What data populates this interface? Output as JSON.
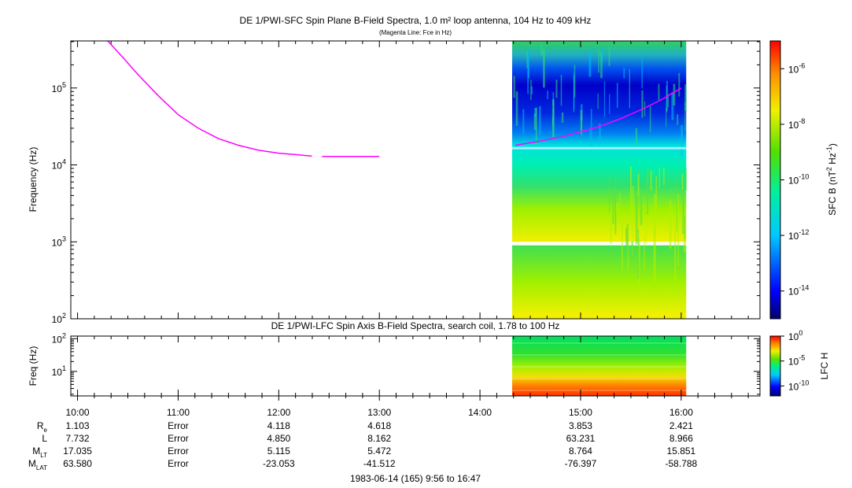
{
  "chart_data": [
    {
      "type": "heatmap",
      "title": "DE 1/PWI-SFC  Spin Plane B-Field Spectra, 1.0 m² loop antenna, 104 Hz to 409 kHz",
      "subtitle": "(Magenta Line: Fce in Hz)",
      "ylabel": "Frequency (Hz)",
      "yscale": "log",
      "ylim": [
        100,
        409000
      ],
      "yticks": [
        {
          "value": 100,
          "base": "10",
          "exp": "2"
        },
        {
          "value": 1000,
          "base": "10",
          "exp": "3"
        },
        {
          "value": 10000,
          "base": "10",
          "exp": "4"
        },
        {
          "value": 100000,
          "base": "10",
          "exp": "5"
        }
      ],
      "colorbar": {
        "label_main": "SFC B (nT",
        "label_sup1": "2",
        "label_mid": " Hz",
        "label_sup2": "-1",
        "label_end": ")",
        "scale": "log",
        "range": [
          -15,
          -5
        ],
        "ticks": [
          {
            "value": -6,
            "base": "10",
            "exp": "-6"
          },
          {
            "value": -8,
            "base": "10",
            "exp": "-8"
          },
          {
            "value": -10,
            "base": "10",
            "exp": "-10"
          },
          {
            "value": -12,
            "base": "10",
            "exp": "-12"
          },
          {
            "value": -14,
            "base": "10",
            "exp": "-14"
          }
        ]
      },
      "data_interval_hours": [
        14.32,
        16.05
      ],
      "fce_line": {
        "segments": [
          {
            "x": [
              10.3,
              10.45,
              10.6,
              10.8,
              11.0,
              11.2,
              11.4,
              11.6,
              11.8,
              12.0,
              12.2,
              12.33
            ],
            "y": [
              409000,
              250000,
              150000,
              80000,
              45000,
              30000,
              22000,
              18000,
              15500,
              14200,
              13500,
              13000
            ]
          },
          {
            "x": [
              12.43,
              13.0
            ],
            "y": [
              12900,
              12900
            ]
          },
          {
            "x": [
              14.35,
              14.6,
              14.8,
              15.0,
              15.2,
              15.4,
              15.6,
              15.8,
              16.0
            ],
            "y": [
              18000,
              20500,
              23000,
              27000,
              32000,
              40000,
              52000,
              70000,
              100000
            ]
          }
        ],
        "color": "#ff00ff"
      }
    },
    {
      "type": "heatmap",
      "title": "DE 1/PWI-LFC  Spin Axis B-Field Spectra, search coil, 1.78 to 100 Hz",
      "ylabel": "Freq (Hz)",
      "yscale": "log",
      "ylim": [
        1.78,
        120
      ],
      "yticks": [
        {
          "value": 10,
          "base": "10",
          "exp": "1"
        },
        {
          "value": 100,
          "base": "10",
          "exp": "2"
        }
      ],
      "colorbar": {
        "label": "LFC H",
        "scale": "log",
        "range": [
          -12,
          0
        ],
        "ticks": [
          {
            "value": 0,
            "base": "10",
            "exp": "0"
          },
          {
            "value": -5,
            "base": "10",
            "exp": "-5"
          },
          {
            "value": -10,
            "base": "10",
            "exp": "-10"
          }
        ]
      },
      "data_interval_hours": [
        14.32,
        16.05
      ]
    }
  ],
  "x_axis": {
    "xlim": [
      9.933,
      16.783
    ],
    "major_ticks": [
      10,
      11,
      12,
      13,
      14,
      15,
      16
    ],
    "labels": [
      "10:00",
      "11:00",
      "12:00",
      "13:00",
      "14:00",
      "15:00",
      "16:00"
    ]
  },
  "ephemeris": {
    "rows": [
      {
        "label": "R",
        "sub": "e",
        "values": [
          "1.103",
          "Error",
          "4.118",
          "4.618",
          "",
          "3.853",
          "2.421"
        ]
      },
      {
        "label": "L",
        "sub": "",
        "values": [
          "7.732",
          "Error",
          "4.850",
          "8.162",
          "",
          "63.231",
          "8.966"
        ]
      },
      {
        "label": "M",
        "sub": "LT",
        "values": [
          "17.035",
          "Error",
          "5.115",
          "5.472",
          "",
          "8.764",
          "15.851"
        ]
      },
      {
        "label": "M",
        "sub": "LAT",
        "values": [
          "63.580",
          "Error",
          "-23.053",
          "-41.512",
          "",
          "-76.397",
          "-58.788"
        ]
      }
    ]
  },
  "footer": "1983-06-14 (165) 9:56 to 16:47"
}
